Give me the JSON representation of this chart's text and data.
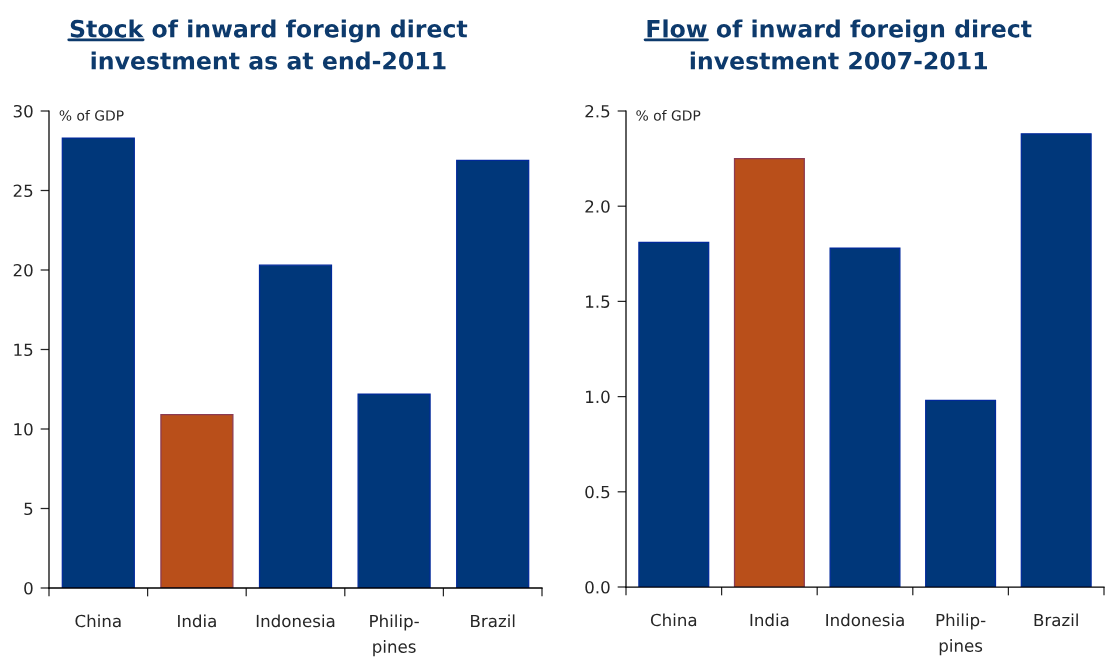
{
  "chart_data": [
    {
      "type": "bar",
      "title": "Stock of inward foreign direct\ninvestment as at end-2011",
      "ylabel": "% of GDP",
      "categories": [
        "China",
        "India",
        "Indonesia",
        "Philip-\npines",
        "Brazil"
      ],
      "values": [
        28.3,
        10.9,
        20.3,
        12.2,
        26.9
      ],
      "colors": [
        "#00377a",
        "#b94f1a",
        "#00377a",
        "#00377a",
        "#00377a"
      ],
      "ylim": [
        0,
        30
      ],
      "yticks": [
        0,
        5,
        10,
        15,
        20,
        25,
        30
      ]
    },
    {
      "type": "bar",
      "title": "Flow of inward foreign direct\ninvestment 2007-2011",
      "ylabel": "% of GDP",
      "categories": [
        "China",
        "India",
        "Indonesia",
        "Philip-\npines",
        "Brazil"
      ],
      "values": [
        1.81,
        2.25,
        1.78,
        0.98,
        2.38
      ],
      "colors": [
        "#00377a",
        "#b94f1a",
        "#00377a",
        "#00377a",
        "#00377a"
      ],
      "ylim": [
        0,
        2.5
      ],
      "yticks": [
        {
          "value": 0,
          "label": "0.0"
        },
        {
          "value": 0.5,
          "label": "0.5"
        },
        {
          "value": 1,
          "label": "1.0"
        },
        {
          "value": 1.5,
          "label": "1.5"
        },
        {
          "value": 2,
          "label": "2.0"
        },
        {
          "value": 2.5,
          "label": "2.5"
        }
      ]
    }
  ]
}
